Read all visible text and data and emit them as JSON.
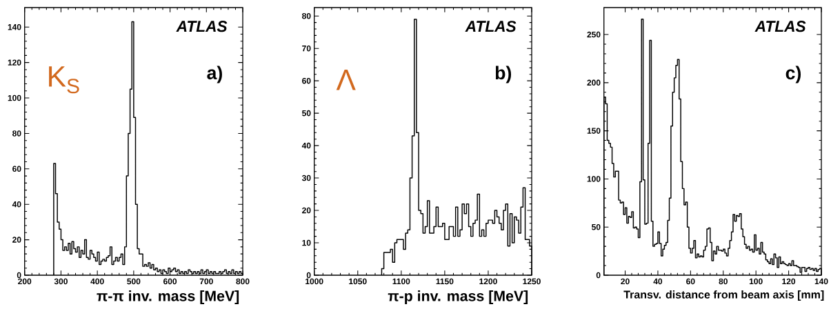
{
  "chart_data": [
    {
      "type": "histogram",
      "xlabel": "π-π inv. mass [MeV]",
      "color": "#000000",
      "annotations": [
        "ATLAS",
        "a)",
        "K$_{S}$"
      ],
      "xlim": [
        200,
        800
      ],
      "ylim": [
        0,
        151
      ],
      "xticks": [
        200,
        300,
        400,
        500,
        600,
        700,
        800
      ],
      "yticks": [
        0,
        20,
        40,
        60,
        80,
        100,
        120,
        140
      ],
      "bins": [
        280,
        285,
        290,
        295,
        300,
        305,
        310,
        315,
        320,
        325,
        330,
        335,
        340,
        345,
        350,
        355,
        360,
        365,
        370,
        375,
        380,
        385,
        390,
        395,
        400,
        405,
        410,
        415,
        420,
        425,
        430,
        435,
        440,
        445,
        450,
        455,
        460,
        465,
        470,
        475,
        480,
        485,
        490,
        495,
        500,
        505,
        510,
        515,
        520,
        525,
        530,
        535,
        540,
        545,
        550,
        555,
        560,
        565,
        570,
        575,
        580,
        585,
        590,
        595,
        600,
        605,
        610,
        615,
        620,
        625,
        630,
        635,
        640,
        645,
        650,
        655,
        660,
        665,
        670,
        675,
        680,
        685,
        690,
        695,
        700,
        705,
        710,
        715,
        720,
        725,
        730,
        735,
        740,
        745,
        750,
        755,
        760,
        765,
        770,
        775,
        780,
        785,
        790,
        795,
        800
      ],
      "values": [
        63,
        46,
        30,
        26,
        20,
        14,
        16,
        14,
        18,
        12,
        19,
        15,
        13,
        16,
        10,
        14,
        12,
        20,
        10,
        9,
        14,
        12,
        10,
        8,
        13,
        6,
        8,
        9,
        8,
        10,
        11,
        16,
        6,
        8,
        10,
        8,
        10,
        12,
        6,
        16,
        56,
        80,
        105,
        143,
        89,
        40,
        15,
        12,
        12,
        5,
        6,
        5,
        7,
        4,
        6,
        3,
        4,
        2,
        3,
        1,
        3,
        2,
        1,
        4,
        2,
        3,
        4,
        2,
        3,
        1,
        2,
        1,
        2,
        1,
        3,
        2,
        1,
        2,
        1,
        2,
        1,
        3,
        1,
        2,
        3,
        1,
        2,
        1,
        2,
        1,
        1,
        2,
        1,
        2,
        3,
        1,
        2,
        1,
        3,
        1,
        2,
        1,
        2,
        1
      ]
    },
    {
      "type": "histogram",
      "xlabel": "π-p inv. mass [MeV]",
      "color": "#000000",
      "annotations": [
        "ATLAS",
        "b)",
        "Λ"
      ],
      "xlim": [
        1000,
        1250
      ],
      "ylim": [
        0,
        82.6
      ],
      "xticks": [
        1000,
        1050,
        1100,
        1150,
        1200,
        1250
      ],
      "yticks": [
        0,
        10,
        20,
        30,
        40,
        50,
        60,
        70,
        80
      ],
      "bins": [
        1077.5,
        1080,
        1082.5,
        1085,
        1087.5,
        1090,
        1092.5,
        1095,
        1097.5,
        1100,
        1102.5,
        1105,
        1107.5,
        1110,
        1112.5,
        1115,
        1117.5,
        1120,
        1122.5,
        1125,
        1127.5,
        1130,
        1132.5,
        1135,
        1137.5,
        1140,
        1142.5,
        1145,
        1147.5,
        1150,
        1152.5,
        1155,
        1157.5,
        1160,
        1162.5,
        1165,
        1167.5,
        1170,
        1172.5,
        1175,
        1177.5,
        1180,
        1182.5,
        1185,
        1187.5,
        1190,
        1192.5,
        1195,
        1197.5,
        1200,
        1202.5,
        1205,
        1207.5,
        1210,
        1212.5,
        1215,
        1217.5,
        1220,
        1222.5,
        1225,
        1227.5,
        1230,
        1232.5,
        1235,
        1237.5,
        1240,
        1242.5,
        1245,
        1247.5,
        1250
      ],
      "values": [
        2,
        7,
        7,
        7,
        8,
        4,
        10,
        11,
        11,
        11,
        8,
        13,
        14,
        30,
        43,
        79,
        44,
        20,
        19,
        13,
        15,
        23,
        13,
        13,
        15,
        21,
        15,
        15,
        16,
        11,
        11,
        15,
        15,
        12,
        21,
        12,
        14,
        22,
        19,
        22,
        15,
        12,
        16,
        17,
        25,
        12,
        14,
        12,
        16,
        17,
        17,
        16,
        20,
        18,
        16,
        14,
        20,
        22,
        9,
        19,
        10,
        18,
        17,
        13,
        21,
        27,
        11,
        11,
        9
      ]
    },
    {
      "type": "histogram",
      "xlabel": "Transv. distance from beam axis [mm]",
      "color": "#000000",
      "annotations": [
        "ATLAS",
        "c)"
      ],
      "xlim": [
        7,
        140
      ],
      "ylim": [
        0,
        278
      ],
      "xticks": [
        20,
        40,
        60,
        80,
        100,
        120,
        140
      ],
      "yticks": [
        0,
        50,
        100,
        150,
        200,
        250
      ],
      "bins": [
        7,
        8,
        9,
        10,
        11,
        12,
        13,
        14,
        15,
        16,
        17,
        18,
        19,
        20,
        21,
        22,
        23,
        24,
        25,
        26,
        27,
        28,
        29,
        30,
        31,
        32,
        33,
        34,
        35,
        36,
        37,
        38,
        39,
        40,
        41,
        42,
        43,
        44,
        45,
        46,
        47,
        48,
        49,
        50,
        51,
        52,
        53,
        54,
        55,
        56,
        57,
        58,
        59,
        60,
        61,
        62,
        63,
        64,
        65,
        66,
        67,
        68,
        69,
        70,
        71,
        72,
        73,
        74,
        75,
        76,
        77,
        78,
        79,
        80,
        81,
        82,
        83,
        84,
        85,
        86,
        87,
        88,
        89,
        90,
        91,
        92,
        93,
        94,
        95,
        96,
        97,
        98,
        99,
        100,
        101,
        102,
        103,
        104,
        105,
        106,
        107,
        108,
        109,
        110,
        111,
        112,
        113,
        114,
        115,
        116,
        117,
        118,
        119,
        120,
        121,
        122,
        123,
        124,
        125,
        126,
        127,
        128,
        129,
        130,
        131,
        132,
        133,
        134,
        135,
        136,
        137,
        138,
        139,
        140
      ],
      "values": [
        185,
        178,
        140,
        137,
        133,
        116,
        102,
        108,
        108,
        78,
        75,
        76,
        63,
        70,
        54,
        61,
        60,
        66,
        49,
        50,
        48,
        39,
        97,
        266,
        99,
        53,
        54,
        137,
        244,
        56,
        30,
        32,
        33,
        45,
        33,
        20,
        27,
        31,
        34,
        57,
        80,
        155,
        190,
        205,
        218,
        224,
        183,
        118,
        90,
        73,
        76,
        50,
        28,
        23,
        28,
        36,
        18,
        22,
        19,
        20,
        19,
        26,
        30,
        48,
        49,
        34,
        15,
        25,
        22,
        30,
        26,
        26,
        25,
        27,
        23,
        20,
        28,
        36,
        45,
        63,
        56,
        62,
        61,
        64,
        48,
        40,
        32,
        28,
        30,
        26,
        27,
        24,
        42,
        26,
        28,
        22,
        34,
        24,
        22,
        16,
        14,
        12,
        17,
        11,
        22,
        18,
        8,
        19,
        12,
        14,
        12,
        11,
        10,
        12,
        10,
        15,
        10,
        10,
        9,
        8,
        3,
        8,
        8,
        4,
        7,
        8,
        6,
        7,
        5,
        7,
        4,
        6,
        7
      ]
    }
  ]
}
